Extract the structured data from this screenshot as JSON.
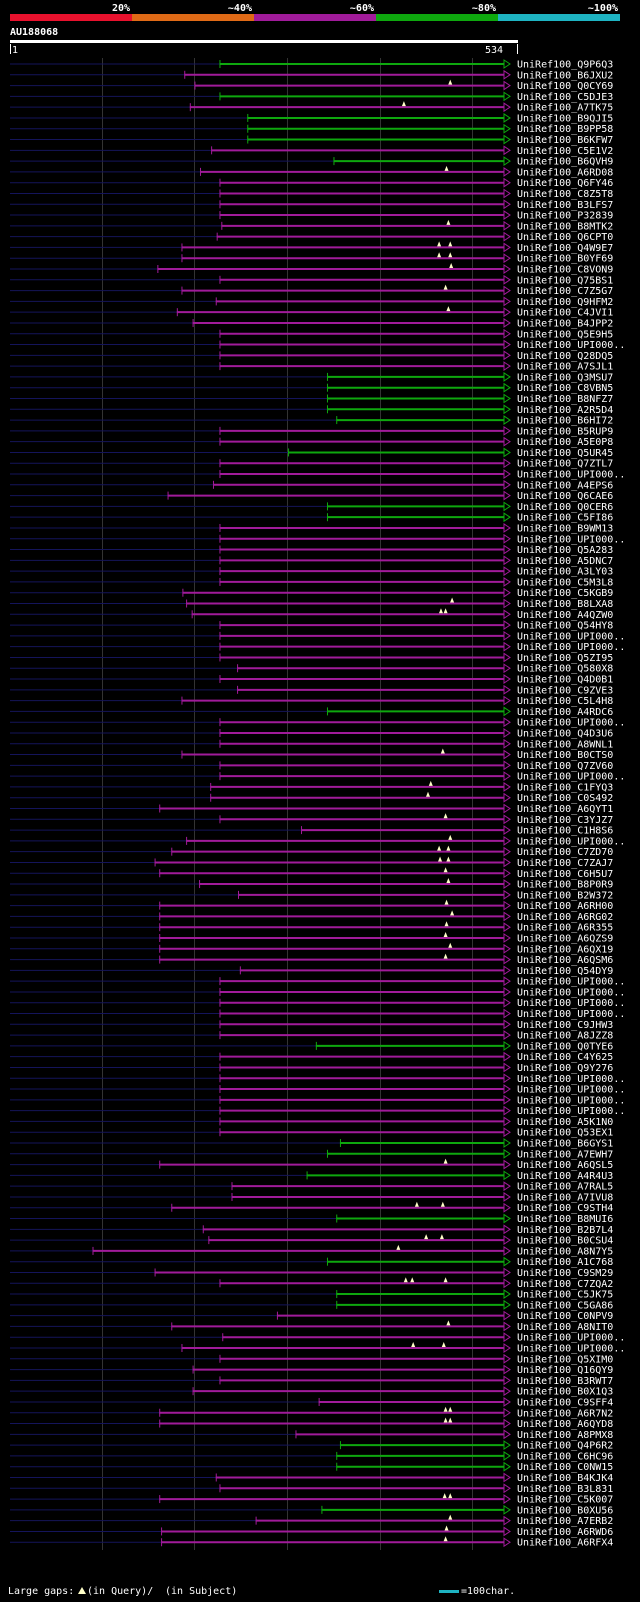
{
  "query_id": "AU188068",
  "scale_start": "1",
  "scale_end": "534",
  "query_length": 534,
  "identity_legend": [
    {
      "label": "20%",
      "color": "#e8112d"
    },
    {
      "label": "~40%",
      "color": "#e06a16"
    },
    {
      "label": "~60%",
      "color": "#a11b9a"
    },
    {
      "label": "~80%",
      "color": "#0ea80e"
    },
    {
      "label": "~100%",
      "color": "#1eb3c2"
    }
  ],
  "footer": {
    "gaps_label": "Large gaps:",
    "gaps_query": "(in Query)/",
    "gaps_subject": "(in Subject)",
    "scale_label": "=100char."
  },
  "hits": [
    {
      "label": "UniRef100_Q9P6Q3",
      "start": 227,
      "color": "green",
      "gaps": []
    },
    {
      "label": "UniRef100_B6JXU2",
      "start": 189,
      "color": "purple",
      "gaps": []
    },
    {
      "label": "UniRef100_Q0CY69",
      "start": 200,
      "color": "purple",
      "gaps": [
        476
      ]
    },
    {
      "label": "UniRef100_C5DJE3",
      "start": 227,
      "color": "green",
      "gaps": []
    },
    {
      "label": "UniRef100_A7TK75",
      "start": 195,
      "color": "purple",
      "gaps": [
        426
      ]
    },
    {
      "label": "UniRef100_B9QJI5",
      "start": 257,
      "color": "green",
      "gaps": []
    },
    {
      "label": "UniRef100_B9PP58",
      "start": 257,
      "color": "green",
      "gaps": []
    },
    {
      "label": "UniRef100_B6KFW7",
      "start": 257,
      "color": "green",
      "gaps": []
    },
    {
      "label": "UniRef100_C5E1V2",
      "start": 218,
      "color": "purple",
      "gaps": []
    },
    {
      "label": "UniRef100_B6QVH9",
      "start": 350,
      "color": "green",
      "gaps": []
    },
    {
      "label": "UniRef100_A6RD08",
      "start": 206,
      "color": "purple",
      "gaps": [
        472
      ]
    },
    {
      "label": "UniRef100_Q6FY46",
      "start": 227,
      "color": "purple",
      "gaps": []
    },
    {
      "label": "UniRef100_C8Z5T8",
      "start": 227,
      "color": "purple",
      "gaps": []
    },
    {
      "label": "UniRef100_B3LFS7",
      "start": 227,
      "color": "purple",
      "gaps": []
    },
    {
      "label": "UniRef100_P32839",
      "start": 227,
      "color": "purple",
      "gaps": []
    },
    {
      "label": "UniRef100_B8MTK2",
      "start": 229,
      "color": "purple",
      "gaps": [
        474
      ]
    },
    {
      "label": "UniRef100_Q6CPT0",
      "start": 224,
      "color": "purple",
      "gaps": []
    },
    {
      "label": "UniRef100_Q4W9E7",
      "start": 186,
      "color": "purple",
      "gaps": [
        464,
        476
      ]
    },
    {
      "label": "UniRef100_B0YF69",
      "start": 186,
      "color": "purple",
      "gaps": [
        464,
        476
      ]
    },
    {
      "label": "UniRef100_C8VON9",
      "start": 160,
      "color": "purple",
      "gaps": [
        477
      ]
    },
    {
      "label": "UniRef100_Q75BS1",
      "start": 227,
      "color": "purple",
      "gaps": []
    },
    {
      "label": "UniRef100_C7Z5G7",
      "start": 186,
      "color": "purple",
      "gaps": [
        471
      ]
    },
    {
      "label": "UniRef100_Q9HFM2",
      "start": 223,
      "color": "purple",
      "gaps": []
    },
    {
      "label": "UniRef100_C4JVI1",
      "start": 181,
      "color": "purple",
      "gaps": [
        474
      ]
    },
    {
      "label": "UniRef100_B4JPP2",
      "start": 198,
      "color": "purple",
      "gaps": []
    },
    {
      "label": "UniRef100_Q5E9H5",
      "start": 227,
      "color": "purple",
      "gaps": []
    },
    {
      "label": "UniRef100_UPI000..",
      "start": 227,
      "color": "purple",
      "gaps": []
    },
    {
      "label": "UniRef100_Q28DQ5",
      "start": 227,
      "color": "purple",
      "gaps": []
    },
    {
      "label": "UniRef100_A7SJL1",
      "start": 227,
      "color": "purple",
      "gaps": []
    },
    {
      "label": "UniRef100_Q3MSU7",
      "start": 343,
      "color": "green",
      "gaps": []
    },
    {
      "label": "UniRef100_C8VBN5",
      "start": 343,
      "color": "green",
      "gaps": []
    },
    {
      "label": "UniRef100_B8NFZ7",
      "start": 343,
      "color": "green",
      "gaps": []
    },
    {
      "label": "UniRef100_A2R5D4",
      "start": 343,
      "color": "green",
      "gaps": []
    },
    {
      "label": "UniRef100_B6HI72",
      "start": 353,
      "color": "green",
      "gaps": []
    },
    {
      "label": "UniRef100_B5RUP9",
      "start": 227,
      "color": "purple",
      "gaps": []
    },
    {
      "label": "UniRef100_A5E0P8",
      "start": 227,
      "color": "purple",
      "gaps": []
    },
    {
      "label": "UniRef100_Q5UR45",
      "start": 301,
      "color": "green",
      "gaps": []
    },
    {
      "label": "UniRef100_Q7ZTL7",
      "start": 227,
      "color": "purple",
      "gaps": []
    },
    {
      "label": "UniRef100_UPI000..",
      "start": 227,
      "color": "purple",
      "gaps": []
    },
    {
      "label": "UniRef100_A4EPS6",
      "start": 220,
      "color": "purple",
      "gaps": []
    },
    {
      "label": "UniRef100_Q6CAE6",
      "start": 171,
      "color": "purple",
      "gaps": []
    },
    {
      "label": "UniRef100_Q0CER6",
      "start": 343,
      "color": "green",
      "gaps": []
    },
    {
      "label": "UniRef100_C5FI86",
      "start": 343,
      "color": "green",
      "gaps": []
    },
    {
      "label": "UniRef100_B9WM13",
      "start": 227,
      "color": "purple",
      "gaps": []
    },
    {
      "label": "UniRef100_UPI000..",
      "start": 227,
      "color": "purple",
      "gaps": []
    },
    {
      "label": "UniRef100_Q5A283",
      "start": 227,
      "color": "purple",
      "gaps": []
    },
    {
      "label": "UniRef100_A5DNC7",
      "start": 227,
      "color": "purple",
      "gaps": []
    },
    {
      "label": "UniRef100_A3LY03",
      "start": 227,
      "color": "purple",
      "gaps": []
    },
    {
      "label": "UniRef100_C5M3L8",
      "start": 227,
      "color": "purple",
      "gaps": []
    },
    {
      "label": "UniRef100_C5KGB9",
      "start": 187,
      "color": "purple",
      "gaps": []
    },
    {
      "label": "UniRef100_B8LXA8",
      "start": 191,
      "color": "purple",
      "gaps": [
        478
      ]
    },
    {
      "label": "UniRef100_A4QZW0",
      "start": 197,
      "color": "purple",
      "gaps": [
        466,
        471
      ]
    },
    {
      "label": "UniRef100_Q54HY8",
      "start": 227,
      "color": "purple",
      "gaps": []
    },
    {
      "label": "UniRef100_UPI000..",
      "start": 227,
      "color": "purple",
      "gaps": []
    },
    {
      "label": "UniRef100_UPI000..",
      "start": 227,
      "color": "purple",
      "gaps": []
    },
    {
      "label": "UniRef100_Q5ZI95",
      "start": 227,
      "color": "purple",
      "gaps": []
    },
    {
      "label": "UniRef100_Q580X8",
      "start": 246,
      "color": "purple",
      "gaps": []
    },
    {
      "label": "UniRef100_Q4D0B1",
      "start": 227,
      "color": "purple",
      "gaps": []
    },
    {
      "label": "UniRef100_C9ZVE3",
      "start": 246,
      "color": "purple",
      "gaps": []
    },
    {
      "label": "UniRef100_C5L4H8",
      "start": 186,
      "color": "purple",
      "gaps": []
    },
    {
      "label": "UniRef100_A4RDC6",
      "start": 343,
      "color": "green",
      "gaps": []
    },
    {
      "label": "UniRef100_UPI000..",
      "start": 227,
      "color": "purple",
      "gaps": []
    },
    {
      "label": "UniRef100_Q4D3U6",
      "start": 227,
      "color": "purple",
      "gaps": []
    },
    {
      "label": "UniRef100_A8WNL1",
      "start": 227,
      "color": "purple",
      "gaps": []
    },
    {
      "label": "UniRef100_B0CTS0",
      "start": 186,
      "color": "purple",
      "gaps": [
        468
      ]
    },
    {
      "label": "UniRef100_Q7ZV60",
      "start": 227,
      "color": "purple",
      "gaps": []
    },
    {
      "label": "UniRef100_UPI000..",
      "start": 227,
      "color": "purple",
      "gaps": []
    },
    {
      "label": "UniRef100_C1FYQ3",
      "start": 217,
      "color": "purple",
      "gaps": [
        455
      ]
    },
    {
      "label": "UniRef100_C0S492",
      "start": 217,
      "color": "purple",
      "gaps": [
        452
      ]
    },
    {
      "label": "UniRef100_A6QYT1",
      "start": 162,
      "color": "purple",
      "gaps": []
    },
    {
      "label": "UniRef100_C3YJZ7",
      "start": 227,
      "color": "purple",
      "gaps": [
        471
      ]
    },
    {
      "label": "UniRef100_C1H8S6",
      "start": 315,
      "color": "purple",
      "gaps": []
    },
    {
      "label": "UniRef100_UPI000..",
      "start": 191,
      "color": "purple",
      "gaps": [
        476
      ]
    },
    {
      "label": "UniRef100_C7ZD70",
      "start": 175,
      "color": "purple",
      "gaps": [
        464,
        474
      ]
    },
    {
      "label": "UniRef100_C7ZAJ7",
      "start": 157,
      "color": "purple",
      "gaps": [
        465,
        474
      ]
    },
    {
      "label": "UniRef100_C6H5U7",
      "start": 162,
      "color": "purple",
      "gaps": [
        471
      ]
    },
    {
      "label": "UniRef100_B8P0R9",
      "start": 205,
      "color": "purple",
      "gaps": [
        474
      ]
    },
    {
      "label": "UniRef100_B2W372",
      "start": 247,
      "color": "purple",
      "gaps": []
    },
    {
      "label": "UniRef100_A6RH00",
      "start": 162,
      "color": "purple",
      "gaps": [
        472
      ]
    },
    {
      "label": "UniRef100_A6RG02",
      "start": 162,
      "color": "purple",
      "gaps": [
        478
      ]
    },
    {
      "label": "UniRef100_A6R355",
      "start": 162,
      "color": "purple",
      "gaps": [
        472
      ]
    },
    {
      "label": "UniRef100_A6QZS9",
      "start": 162,
      "color": "purple",
      "gaps": [
        471
      ]
    },
    {
      "label": "UniRef100_A6QX19",
      "start": 162,
      "color": "purple",
      "gaps": [
        476
      ]
    },
    {
      "label": "UniRef100_A6QSM6",
      "start": 162,
      "color": "purple",
      "gaps": [
        471
      ]
    },
    {
      "label": "UniRef100_Q54DY9",
      "start": 249,
      "color": "purple",
      "gaps": []
    },
    {
      "label": "UniRef100_UPI000..",
      "start": 227,
      "color": "purple",
      "gaps": []
    },
    {
      "label": "UniRef100_UPI000..",
      "start": 227,
      "color": "purple",
      "gaps": []
    },
    {
      "label": "UniRef100_UPI000..",
      "start": 227,
      "color": "purple",
      "gaps": []
    },
    {
      "label": "UniRef100_UPI000..",
      "start": 227,
      "color": "purple",
      "gaps": []
    },
    {
      "label": "UniRef100_C9JHW3",
      "start": 227,
      "color": "purple",
      "gaps": []
    },
    {
      "label": "UniRef100_A8JZZ8",
      "start": 227,
      "color": "purple",
      "gaps": []
    },
    {
      "label": "UniRef100_Q0TYE6",
      "start": 331,
      "color": "green",
      "gaps": []
    },
    {
      "label": "UniRef100_C4Y625",
      "start": 227,
      "color": "purple",
      "gaps": []
    },
    {
      "label": "UniRef100_Q9Y276",
      "start": 227,
      "color": "purple",
      "gaps": []
    },
    {
      "label": "UniRef100_UPI000..",
      "start": 227,
      "color": "purple",
      "gaps": []
    },
    {
      "label": "UniRef100_UPI000..",
      "start": 227,
      "color": "purple",
      "gaps": []
    },
    {
      "label": "UniRef100_UPI000..",
      "start": 227,
      "color": "purple",
      "gaps": []
    },
    {
      "label": "UniRef100_UPI000..",
      "start": 227,
      "color": "purple",
      "gaps": []
    },
    {
      "label": "UniRef100_A5K1N0",
      "start": 227,
      "color": "purple",
      "gaps": []
    },
    {
      "label": "UniRef100_Q53EX1",
      "start": 227,
      "color": "purple",
      "gaps": []
    },
    {
      "label": "UniRef100_B6GYS1",
      "start": 357,
      "color": "green",
      "gaps": []
    },
    {
      "label": "UniRef100_A7EWH7",
      "start": 343,
      "color": "green",
      "gaps": []
    },
    {
      "label": "UniRef100_A6QSL5",
      "start": 162,
      "color": "purple",
      "gaps": [
        471
      ]
    },
    {
      "label": "UniRef100_A4R4U3",
      "start": 321,
      "color": "green",
      "gaps": []
    },
    {
      "label": "UniRef100_A7RAL5",
      "start": 240,
      "color": "purple",
      "gaps": []
    },
    {
      "label": "UniRef100_A7IVU8",
      "start": 240,
      "color": "purple",
      "gaps": []
    },
    {
      "label": "UniRef100_C9STH4",
      "start": 175,
      "color": "purple",
      "gaps": [
        440,
        468
      ]
    },
    {
      "label": "UniRef100_B8MUI6",
      "start": 353,
      "color": "green",
      "gaps": []
    },
    {
      "label": "UniRef100_B2B7L4",
      "start": 209,
      "color": "purple",
      "gaps": []
    },
    {
      "label": "UniRef100_B0CSU4",
      "start": 215,
      "color": "purple",
      "gaps": [
        450,
        467
      ]
    },
    {
      "label": "UniRef100_A8N7Y5",
      "start": 90,
      "color": "purple",
      "gaps": [
        420
      ]
    },
    {
      "label": "UniRef100_A1C768",
      "start": 343,
      "color": "green",
      "gaps": []
    },
    {
      "label": "UniRef100_C9SM29",
      "start": 157,
      "color": "purple",
      "gaps": []
    },
    {
      "label": "UniRef100_C7ZQA2",
      "start": 227,
      "color": "purple",
      "gaps": [
        428,
        435,
        471
      ]
    },
    {
      "label": "UniRef100_C5JK75",
      "start": 353,
      "color": "green",
      "gaps": []
    },
    {
      "label": "UniRef100_C5GA86",
      "start": 353,
      "color": "green",
      "gaps": []
    },
    {
      "label": "UniRef100_C0NPV9",
      "start": 289,
      "color": "purple",
      "gaps": []
    },
    {
      "label": "UniRef100_A8NIT0",
      "start": 175,
      "color": "purple",
      "gaps": [
        474
      ]
    },
    {
      "label": "UniRef100_UPI000..",
      "start": 230,
      "color": "purple",
      "gaps": []
    },
    {
      "label": "UniRef100_UPI000..",
      "start": 186,
      "color": "purple",
      "gaps": [
        436,
        469
      ]
    },
    {
      "label": "UniRef100_Q5XIM0",
      "start": 227,
      "color": "purple",
      "gaps": []
    },
    {
      "label": "UniRef100_Q16QY9",
      "start": 198,
      "color": "purple",
      "gaps": []
    },
    {
      "label": "UniRef100_B3RWT7",
      "start": 227,
      "color": "purple",
      "gaps": []
    },
    {
      "label": "UniRef100_B0X1Q3",
      "start": 198,
      "color": "purple",
      "gaps": []
    },
    {
      "label": "UniRef100_C9SFF4",
      "start": 334,
      "color": "purple",
      "gaps": []
    },
    {
      "label": "UniRef100_A6R7N2",
      "start": 162,
      "color": "purple",
      "gaps": [
        471,
        476
      ]
    },
    {
      "label": "UniRef100_A6QYD8",
      "start": 162,
      "color": "purple",
      "gaps": [
        471,
        476
      ]
    },
    {
      "label": "UniRef100_A8PMX8",
      "start": 309,
      "color": "purple",
      "gaps": []
    },
    {
      "label": "UniRef100_Q4P6R2",
      "start": 357,
      "color": "green",
      "gaps": []
    },
    {
      "label": "UniRef100_C6HC96",
      "start": 353,
      "color": "green",
      "gaps": []
    },
    {
      "label": "UniRef100_C0NW15",
      "start": 353,
      "color": "green",
      "gaps": []
    },
    {
      "label": "UniRef100_B4KJK4",
      "start": 223,
      "color": "purple",
      "gaps": []
    },
    {
      "label": "UniRef100_B3L831",
      "start": 227,
      "color": "purple",
      "gaps": []
    },
    {
      "label": "UniRef100_C5K007",
      "start": 162,
      "color": "purple",
      "gaps": [
        470,
        476
      ]
    },
    {
      "label": "UniRef100_B0XU56",
      "start": 337,
      "color": "green",
      "gaps": []
    },
    {
      "label": "UniRef100_A7ERB2",
      "start": 266,
      "color": "purple",
      "gaps": [
        476
      ]
    },
    {
      "label": "UniRef100_A6RWD6",
      "start": 164,
      "color": "purple",
      "gaps": [
        472
      ]
    },
    {
      "label": "UniRef100_A6RFX4",
      "start": 164,
      "color": "purple",
      "gaps": [
        471
      ]
    }
  ]
}
